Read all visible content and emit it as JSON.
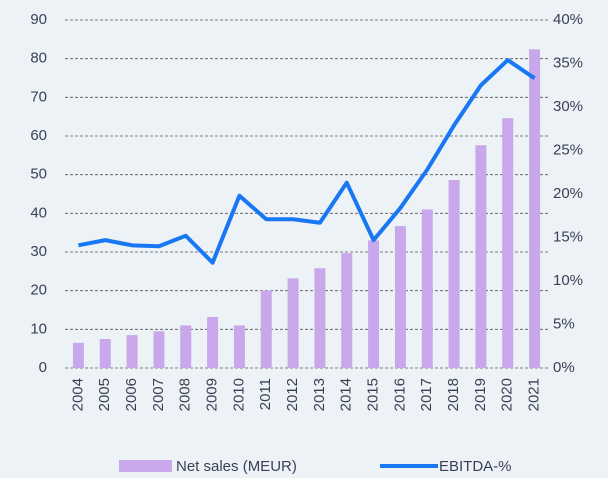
{
  "chart_data": {
    "type": "bar",
    "categories": [
      "2004",
      "2005",
      "2006",
      "2007",
      "2008",
      "2009",
      "2010",
      "2011",
      "2012",
      "2013",
      "2014",
      "2015",
      "2016",
      "2017",
      "2018",
      "2019",
      "2020",
      "2021"
    ],
    "series": [
      {
        "name": "Net sales (MEUR)",
        "color": "#c8a8ea",
        "type": "bar",
        "values": [
          6.5,
          7.5,
          8.5,
          9.5,
          11,
          13.2,
          11,
          20,
          23.2,
          25.8,
          29.7,
          33,
          36.7,
          41,
          48.6,
          57.6,
          64.6,
          82.4
        ]
      },
      {
        "name": "EBITDA-%",
        "color": "#1877f2",
        "type": "line",
        "axis": "y2",
        "values": [
          14.1,
          14.7,
          14.1,
          14.0,
          15.2,
          12.1,
          19.8,
          17.1,
          17.1,
          16.7,
          21.3,
          14.7,
          18.4,
          22.8,
          27.9,
          32.5,
          35.4,
          33.3
        ]
      }
    ],
    "ylim": [
      0,
      90
    ],
    "yticks": [
      0,
      10,
      20,
      30,
      40,
      50,
      60,
      70,
      80,
      90
    ],
    "y2lim": [
      0,
      40
    ],
    "y2ticks": [
      {
        "value": 0,
        "label": "0%"
      },
      {
        "value": 5,
        "label": "5%"
      },
      {
        "value": 10,
        "label": "10%"
      },
      {
        "value": 15,
        "label": "15%"
      },
      {
        "value": 20,
        "label": "20%"
      },
      {
        "value": 25,
        "label": "25%"
      },
      {
        "value": 30,
        "label": "30%"
      },
      {
        "value": 35,
        "label": "35%"
      },
      {
        "value": 40,
        "label": "40%"
      }
    ],
    "grid": true,
    "legend": "bottom"
  }
}
